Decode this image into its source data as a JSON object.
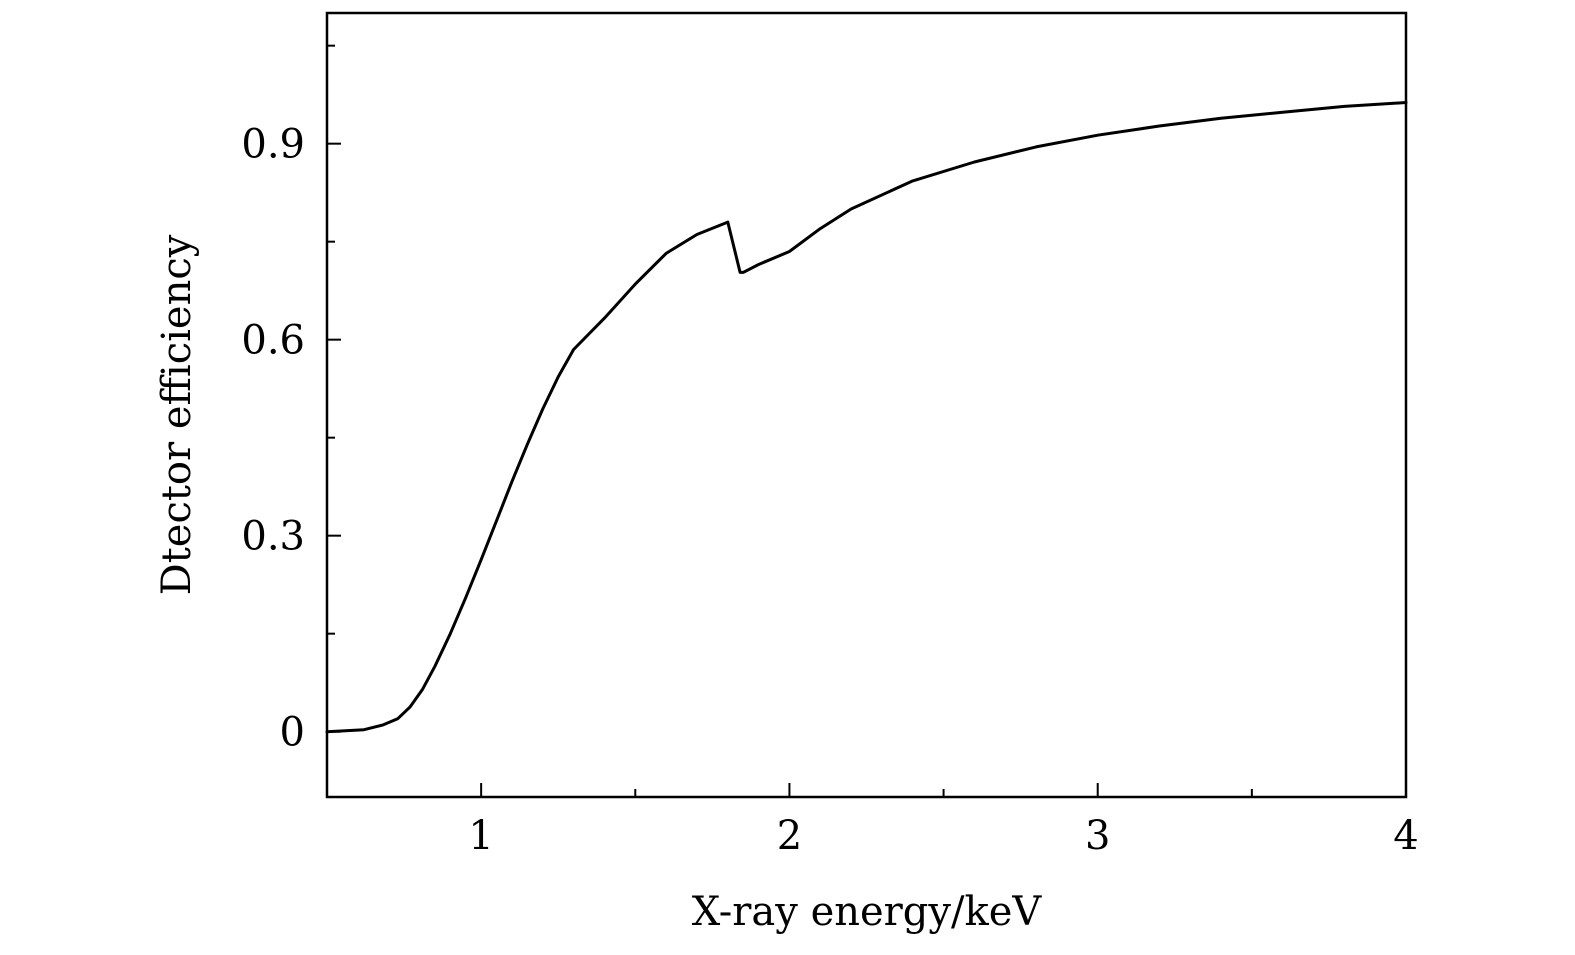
{
  "chart_data": {
    "type": "line",
    "title": "",
    "xlabel": "X-ray energy/keV",
    "ylabel": "Dtector efficiency",
    "xlim": [
      0.5,
      4.0
    ],
    "ylim": [
      -0.1,
      1.1
    ],
    "x_major_ticks": [
      1,
      2,
      3,
      4
    ],
    "x_minor_ticks": [
      1.5,
      2.5,
      3.5
    ],
    "x_tick_labels": [
      "1",
      "2",
      "3",
      "4"
    ],
    "y_major_ticks": [
      0,
      0.3,
      0.6,
      0.9
    ],
    "y_minor_ticks": [
      -0.15,
      0.15,
      0.45,
      0.75,
      1.05
    ],
    "y_tick_labels": [
      "0",
      "0.3",
      "0.6",
      "0.9"
    ],
    "grid": false,
    "legend": "none",
    "series": [
      {
        "x": [
          0.5,
          0.62,
          0.68,
          0.73,
          0.77,
          0.81,
          0.85,
          0.9,
          0.95,
          1.0,
          1.05,
          1.1,
          1.15,
          1.2,
          1.25,
          1.3,
          1.4,
          1.5,
          1.6,
          1.7,
          1.8,
          1.84,
          1.85,
          1.9,
          2.0,
          2.1,
          2.2,
          2.4,
          2.6,
          2.8,
          3.0,
          3.2,
          3.4,
          3.6,
          3.8,
          4.0
        ],
        "y": [
          0.0,
          0.003,
          0.01,
          0.02,
          0.038,
          0.065,
          0.1,
          0.15,
          0.205,
          0.263,
          0.323,
          0.383,
          0.44,
          0.494,
          0.543,
          0.585,
          0.633,
          0.685,
          0.732,
          0.761,
          0.78,
          0.703,
          0.703,
          0.715,
          0.735,
          0.77,
          0.8,
          0.843,
          0.872,
          0.895,
          0.913,
          0.927,
          0.939,
          0.948,
          0.957,
          0.963
        ]
      }
    ]
  }
}
